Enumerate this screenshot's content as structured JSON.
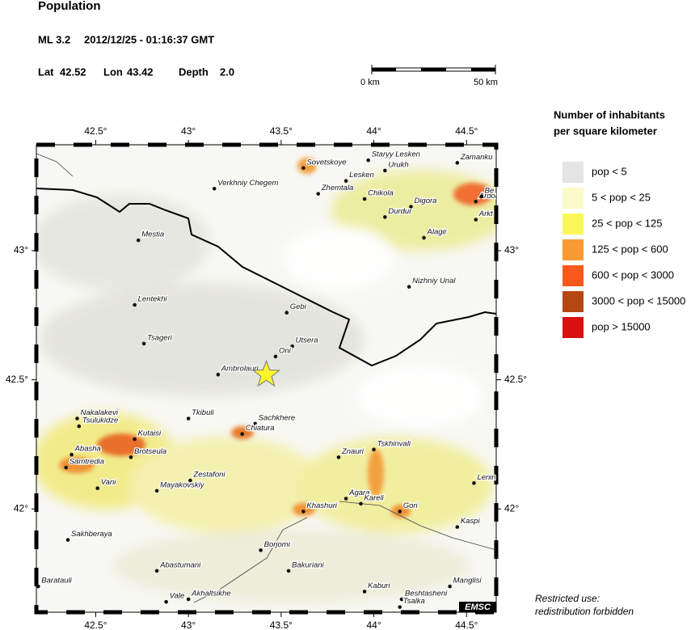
{
  "title": "Population",
  "event": {
    "magnitude": "ML 3.2",
    "datetime": "2012/12/25 - 01:16:37 GMT",
    "lat_label": "Lat",
    "lat": 42.52,
    "lon_label": "Lon",
    "lon": 43.42,
    "depth_label": "Depth",
    "depth": "2.0"
  },
  "scale_bar": {
    "start": "0 km",
    "end": "50 km"
  },
  "map": {
    "lonlim": [
      42.18,
      44.66
    ],
    "latlim": [
      41.6,
      43.41
    ],
    "xticks": [
      {
        "value": 42.5,
        "label": "42.5°"
      },
      {
        "value": 43,
        "label": "43°"
      },
      {
        "value": 43.5,
        "label": "43.5°"
      },
      {
        "value": 44,
        "label": "44°"
      },
      {
        "value": 44.5,
        "label": "44.5°"
      }
    ],
    "yticks": [
      {
        "value": 42,
        "label": "42°"
      },
      {
        "value": 42.5,
        "label": "42.5°"
      },
      {
        "value": 43,
        "label": "43°"
      }
    ],
    "cities": [
      {
        "name": "Staryy Lesken",
        "lon": 43.97,
        "lat": 43.35
      },
      {
        "name": "Zamanku",
        "lon": 44.45,
        "lat": 43.34
      },
      {
        "name": "Sovetskoye",
        "lon": 43.62,
        "lat": 43.32
      },
      {
        "name": "Urukh",
        "lon": 44.06,
        "lat": 43.31
      },
      {
        "name": "Lesken",
        "lon": 43.85,
        "lat": 43.27
      },
      {
        "name": "Verkhniy Chegem",
        "lon": 43.14,
        "lat": 43.24
      },
      {
        "name": "Zhemtala",
        "lon": 43.7,
        "lat": 43.22
      },
      {
        "name": "Chikola",
        "lon": 43.95,
        "lat": 43.2
      },
      {
        "name": "Digora",
        "lon": 44.2,
        "lat": 43.17
      },
      {
        "name": "Ardon",
        "lon": 44.55,
        "lat": 43.19
      },
      {
        "name": "Be",
        "lon": 44.58,
        "lat": 43.21
      },
      {
        "name": "Arkt",
        "lon": 44.55,
        "lat": 43.12
      },
      {
        "name": "Durdur",
        "lon": 44.06,
        "lat": 43.13
      },
      {
        "name": "Alagir",
        "lon": 44.27,
        "lat": 43.05
      },
      {
        "name": "Mestia",
        "lon": 42.73,
        "lat": 43.04
      },
      {
        "name": "Nizhniy Unal",
        "lon": 44.19,
        "lat": 42.86
      },
      {
        "name": "Lentekhi",
        "lon": 42.71,
        "lat": 42.79
      },
      {
        "name": "Gebi",
        "lon": 43.53,
        "lat": 42.76
      },
      {
        "name": "Tsageri",
        "lon": 42.76,
        "lat": 42.64
      },
      {
        "name": "Utsera",
        "lon": 43.56,
        "lat": 42.63
      },
      {
        "name": "Oni",
        "lon": 43.47,
        "lat": 42.59
      },
      {
        "name": "Ambrolauri",
        "lon": 43.16,
        "lat": 42.52
      },
      {
        "name": "Tkibuli",
        "lon": 43.0,
        "lat": 42.35
      },
      {
        "name": "Sachkhere",
        "lon": 43.36,
        "lat": 42.33
      },
      {
        "name": "Nakalakevi",
        "lon": 42.4,
        "lat": 42.35
      },
      {
        "name": "Tsulukidze",
        "lon": 42.41,
        "lat": 42.32
      },
      {
        "name": "Chiatura",
        "lon": 43.29,
        "lat": 42.29
      },
      {
        "name": "Kutaisi",
        "lon": 42.71,
        "lat": 42.27
      },
      {
        "name": "Tskhinvali",
        "lon": 44.0,
        "lat": 42.23
      },
      {
        "name": "Abasha",
        "lon": 42.37,
        "lat": 42.21
      },
      {
        "name": "Brotseula",
        "lon": 42.69,
        "lat": 42.2
      },
      {
        "name": "Znauri",
        "lon": 43.81,
        "lat": 42.2
      },
      {
        "name": "Samtredia",
        "lon": 42.34,
        "lat": 42.16
      },
      {
        "name": "Zestafoni",
        "lon": 43.01,
        "lat": 42.11
      },
      {
        "name": "Lenin",
        "lon": 44.54,
        "lat": 42.1
      },
      {
        "name": "Vani",
        "lon": 42.51,
        "lat": 42.08
      },
      {
        "name": "Mayakovskiy",
        "lon": 42.83,
        "lat": 42.07
      },
      {
        "name": "Agara",
        "lon": 43.85,
        "lat": 42.04
      },
      {
        "name": "Kareli",
        "lon": 43.93,
        "lat": 42.02
      },
      {
        "name": "Khashuri",
        "lon": 43.62,
        "lat": 41.99
      },
      {
        "name": "Gori",
        "lon": 44.14,
        "lat": 41.99
      },
      {
        "name": "Kaspi",
        "lon": 44.45,
        "lat": 41.93
      },
      {
        "name": "Sakhberaya",
        "lon": 42.35,
        "lat": 41.88
      },
      {
        "name": "Borjomi",
        "lon": 43.39,
        "lat": 41.84
      },
      {
        "name": "Abastumani",
        "lon": 42.83,
        "lat": 41.76
      },
      {
        "name": "Bakuriani",
        "lon": 43.54,
        "lat": 41.76
      },
      {
        "name": "Baratauli",
        "lon": 42.19,
        "lat": 41.7
      },
      {
        "name": "Manglisi",
        "lon": 44.41,
        "lat": 41.7
      },
      {
        "name": "Kaburi",
        "lon": 43.95,
        "lat": 41.68
      },
      {
        "name": "Beshtasheni",
        "lon": 44.15,
        "lat": 41.65
      },
      {
        "name": "Vale",
        "lon": 42.88,
        "lat": 41.64
      },
      {
        "name": "Akhaltsikhe",
        "lon": 43.0,
        "lat": 41.65
      },
      {
        "name": "Tsalka",
        "lon": 44.14,
        "lat": 41.62
      }
    ],
    "credit": "EMSC"
  },
  "legend": {
    "title": [
      "Number of inhabitants",
      "per square kilometer"
    ],
    "items": [
      {
        "label": "pop < 5",
        "color": "#e4e4e4"
      },
      {
        "label": "5 < pop < 25",
        "color": "#fbfacb"
      },
      {
        "label": "25 < pop < 125",
        "color": "#fbf75a"
      },
      {
        "label": "125 < pop < 600",
        "color": "#f99b34"
      },
      {
        "label": "600 < pop < 3000",
        "color": "#f8591a"
      },
      {
        "label": "3000 < pop < 15000",
        "color": "#b54712"
      },
      {
        "label": "pop > 15000",
        "color": "#d8100f"
      }
    ]
  },
  "note": [
    "Restricted use:",
    "redistribution forbidden"
  ]
}
